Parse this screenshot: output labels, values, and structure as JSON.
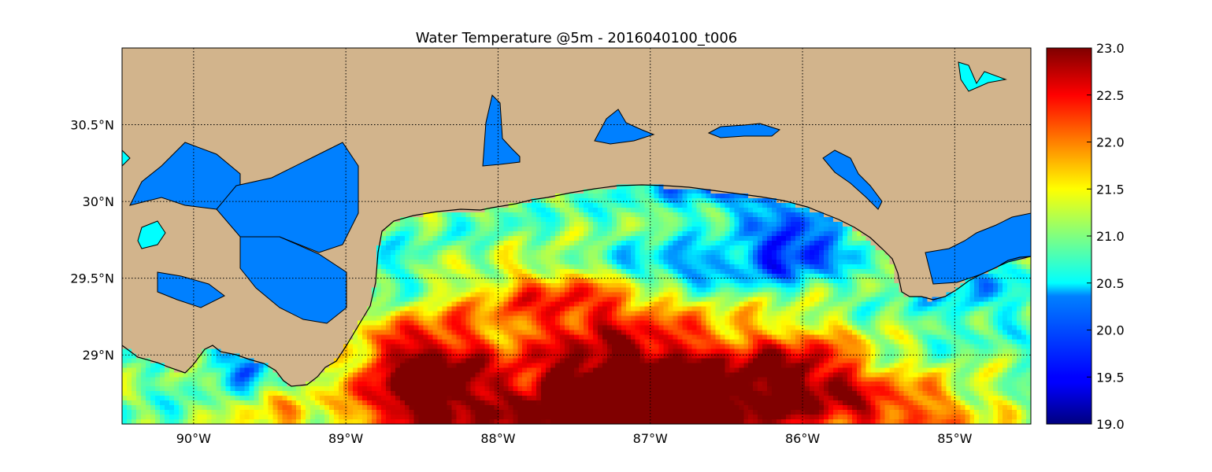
{
  "chart_data": {
    "type": "heatmap",
    "title": "Water Temperature @5m - 2016040100_t006",
    "x_ticks": [
      "90°W",
      "89°W",
      "88°W",
      "87°W",
      "86°W",
      "85°W"
    ],
    "x_tick_values": [
      -90,
      -89,
      -88,
      -87,
      -86,
      -85
    ],
    "y_ticks": [
      "29°N",
      "29.5°N",
      "30°N",
      "30.5°N"
    ],
    "y_tick_values": [
      29.0,
      29.5,
      30.0,
      30.5
    ],
    "xlim": [
      -90.47,
      -84.5
    ],
    "ylim": [
      28.55,
      31.0
    ],
    "grid": true,
    "colorbar": {
      "colormap": "jet",
      "min": 19.0,
      "max": 23.0,
      "tick_values": [
        19.0,
        19.5,
        20.0,
        20.5,
        21.0,
        21.5,
        22.0,
        22.5,
        23.0
      ],
      "tick_labels": [
        "19.0",
        "19.5",
        "20.0",
        "20.5",
        "21.0",
        "21.5",
        "22.0",
        "22.5",
        "23.0"
      ]
    },
    "colors": {
      "land": "#d2b48c",
      "inland_water": "#0080ff",
      "lake": "#00ffff"
    }
  }
}
